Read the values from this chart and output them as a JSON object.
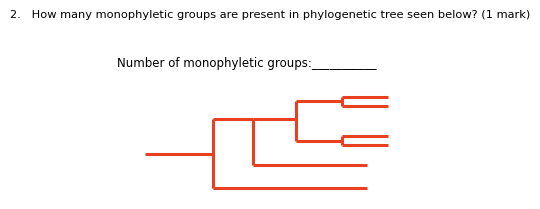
{
  "question": "2.   How many monophyletic groups are present in phylogenetic tree seen below? (1 mark)",
  "fill_label": "Number of monophyletic groups:___________",
  "tree_color": "#e84020",
  "lw": 2.2,
  "bg": "#ffffff",
  "q_fontsize": 8.2,
  "fill_fontsize": 8.5
}
